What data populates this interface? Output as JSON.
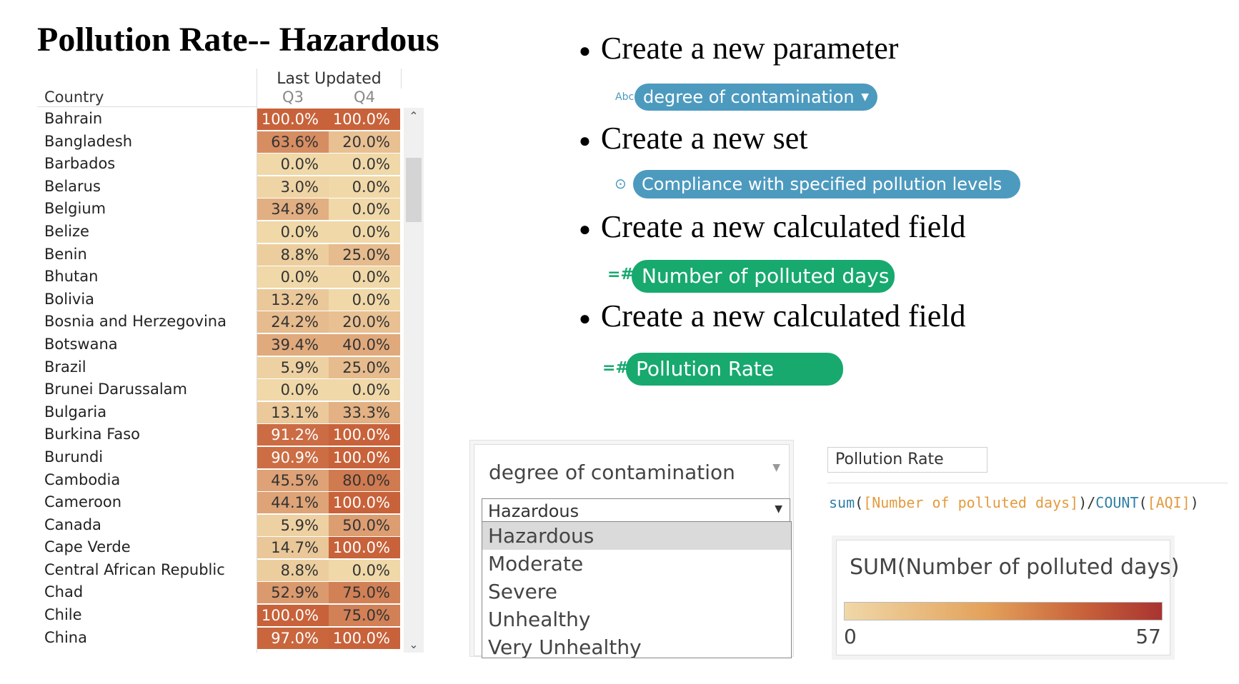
{
  "title": "Pollution Rate-- Hazardous",
  "table": {
    "header_group": "Last Updated",
    "country_header": "Country",
    "columns": [
      "Q3",
      "Q4"
    ],
    "rows": [
      {
        "country": "Bahrain",
        "q3": "100.0%",
        "q4": "100.0%"
      },
      {
        "country": "Bangladesh",
        "q3": "63.6%",
        "q4": "20.0%"
      },
      {
        "country": "Barbados",
        "q3": "0.0%",
        "q4": "0.0%"
      },
      {
        "country": "Belarus",
        "q3": "3.0%",
        "q4": "0.0%"
      },
      {
        "country": "Belgium",
        "q3": "34.8%",
        "q4": "0.0%"
      },
      {
        "country": "Belize",
        "q3": "0.0%",
        "q4": "0.0%"
      },
      {
        "country": "Benin",
        "q3": "8.8%",
        "q4": "25.0%"
      },
      {
        "country": "Bhutan",
        "q3": "0.0%",
        "q4": "0.0%"
      },
      {
        "country": "Bolivia",
        "q3": "13.2%",
        "q4": "0.0%"
      },
      {
        "country": "Bosnia and Herzegovina",
        "q3": "24.2%",
        "q4": "20.0%"
      },
      {
        "country": "Botswana",
        "q3": "39.4%",
        "q4": "40.0%"
      },
      {
        "country": "Brazil",
        "q3": "5.9%",
        "q4": "25.0%"
      },
      {
        "country": "Brunei Darussalam",
        "q3": "0.0%",
        "q4": "0.0%"
      },
      {
        "country": "Bulgaria",
        "q3": "13.1%",
        "q4": "33.3%"
      },
      {
        "country": "Burkina Faso",
        "q3": "91.2%",
        "q4": "100.0%"
      },
      {
        "country": "Burundi",
        "q3": "90.9%",
        "q4": "100.0%"
      },
      {
        "country": "Cambodia",
        "q3": "45.5%",
        "q4": "80.0%"
      },
      {
        "country": "Cameroon",
        "q3": "44.1%",
        "q4": "100.0%"
      },
      {
        "country": "Canada",
        "q3": "5.9%",
        "q4": "50.0%"
      },
      {
        "country": "Cape Verde",
        "q3": "14.7%",
        "q4": "100.0%"
      },
      {
        "country": "Central African Republic",
        "q3": "8.8%",
        "q4": "0.0%"
      },
      {
        "country": "Chad",
        "q3": "52.9%",
        "q4": "75.0%"
      },
      {
        "country": "Chile",
        "q3": "100.0%",
        "q4": "75.0%"
      },
      {
        "country": "China",
        "q3": "97.0%",
        "q4": "100.0%"
      }
    ]
  },
  "bullets": [
    "Create a new parameter",
    "Create a new set",
    "Create a new calculated field",
    "Create a new calculated field"
  ],
  "pills": {
    "parameter": {
      "label": "degree of contamination",
      "icon": "Abc"
    },
    "set": {
      "label": "Compliance with specified pollution levels",
      "icon": "⊙"
    },
    "calc1": {
      "label": "Number of polluted days",
      "icon": "=#"
    },
    "calc2": {
      "label": "Pollution Rate",
      "icon": "=#"
    }
  },
  "parameter_control": {
    "title": "degree of contamination",
    "selected": "Hazardous",
    "options": [
      "Hazardous",
      "Moderate",
      "Severe",
      "Unhealthy",
      "Very Unhealthy"
    ]
  },
  "calc_field": {
    "name": "Pollution Rate",
    "formula_parts": [
      {
        "t": "fn",
        "v": "sum"
      },
      {
        "t": "op",
        "v": "("
      },
      {
        "t": "fld",
        "v": "[Number of polluted days]"
      },
      {
        "t": "op",
        "v": ")/"
      },
      {
        "t": "fn",
        "v": "COUNT"
      },
      {
        "t": "op",
        "v": "("
      },
      {
        "t": "fld",
        "v": "[AQI]"
      },
      {
        "t": "op",
        "v": ")"
      }
    ]
  },
  "legend": {
    "title": "SUM(Number of polluted days)",
    "min": "0",
    "max": "57"
  },
  "colors": {
    "param_pill": "#4d9abf",
    "calc_pill": "#17a96e",
    "heat_low": "#f0d8a8",
    "heat_high": "#c8623a"
  }
}
